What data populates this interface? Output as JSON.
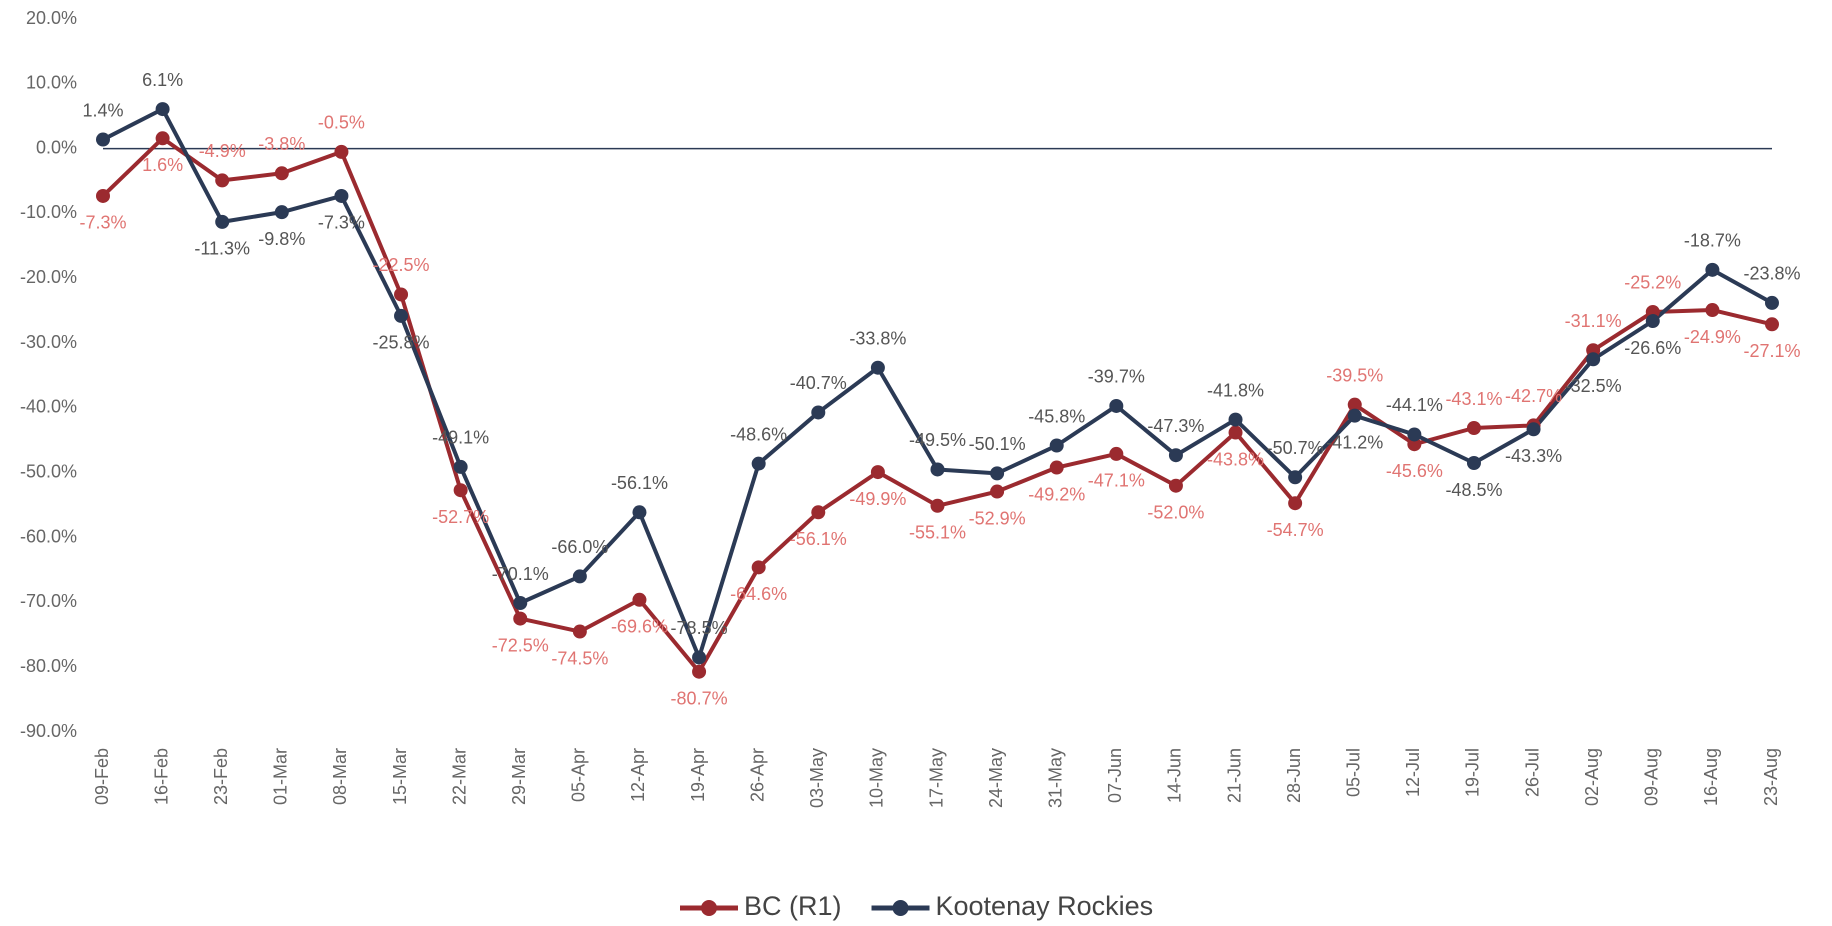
{
  "chart_data": {
    "type": "line",
    "categories": [
      "09-Feb",
      "16-Feb",
      "23-Feb",
      "01-Mar",
      "08-Mar",
      "15-Mar",
      "22-Mar",
      "29-Mar",
      "05-Apr",
      "12-Apr",
      "19-Apr",
      "26-Apr",
      "03-May",
      "10-May",
      "17-May",
      "24-May",
      "31-May",
      "07-Jun",
      "14-Jun",
      "21-Jun",
      "28-Jun",
      "05-Jul",
      "12-Jul",
      "19-Jul",
      "26-Jul",
      "02-Aug",
      "09-Aug",
      "16-Aug",
      "23-Aug"
    ],
    "series": [
      {
        "name": "BC (R1)",
        "color": "#9b2a2f",
        "label_color": "#e07472",
        "values": [
          -7.3,
          1.6,
          -4.9,
          -3.8,
          -0.5,
          -22.5,
          -52.7,
          -72.5,
          -74.5,
          -69.6,
          -80.7,
          -64.6,
          -56.1,
          -49.9,
          -55.1,
          -52.9,
          -49.2,
          -47.1,
          -52.0,
          -43.8,
          -54.7,
          -39.5,
          -45.6,
          -43.1,
          -42.7,
          -31.1,
          -25.2,
          -24.9,
          -27.1
        ],
        "value_labels": [
          "-7.3%",
          "1.6%",
          "-4.9%",
          "-3.8%",
          "-0.5%",
          "-22.5%",
          "-52.7%",
          "-72.5%",
          "-74.5%",
          "-69.6%",
          "-80.7%",
          "-64.6%",
          "-56.1%",
          "-49.9%",
          "-55.1%",
          "-52.9%",
          "-49.2%",
          "-47.1%",
          "-52.0%",
          "-43.8%",
          "-54.7%",
          "-39.5%",
          "-45.6%",
          "-43.1%",
          "-42.7%",
          "-31.1%",
          "-25.2%",
          "-24.9%",
          "-27.1%"
        ]
      },
      {
        "name": "Kootenay Rockies",
        "color": "#2b3a55",
        "label_color": "#555555",
        "values": [
          1.4,
          6.1,
          -11.3,
          -9.8,
          -7.3,
          -25.8,
          -49.1,
          -70.1,
          -66.0,
          -56.1,
          -78.5,
          -48.6,
          -40.7,
          -33.8,
          -49.5,
          -50.1,
          -45.8,
          -39.7,
          -47.3,
          -41.8,
          -50.7,
          -41.2,
          -44.1,
          -48.5,
          -43.3,
          -32.5,
          -26.6,
          -18.7,
          -23.8
        ],
        "value_labels": [
          "1.4%",
          "6.1%",
          "-11.3%",
          "-9.8%",
          "-7.3%",
          "-25.8%",
          "-49.1%",
          "-70.1%",
          "-66.0%",
          "-56.1%",
          "-78.5%",
          "-48.6%",
          "-40.7%",
          "-33.8%",
          "-49.5%",
          "-50.1%",
          "-45.8%",
          "-39.7%",
          "-47.3%",
          "-41.8%",
          "-50.7%",
          "-41.2%",
          "-44.1%",
          "-48.5%",
          "-43.3%",
          "-32.5%",
          "-26.6%",
          "-18.7%",
          "-23.8%"
        ]
      }
    ],
    "ylim": [
      -90,
      20
    ],
    "yticks": [
      {
        "value": 20,
        "label": "20.0%"
      },
      {
        "value": 10,
        "label": "10.0%"
      },
      {
        "value": 0,
        "label": "0.0%"
      },
      {
        "value": -10,
        "label": "-10.0%"
      },
      {
        "value": -20,
        "label": "-20.0%"
      },
      {
        "value": -30,
        "label": "-30.0%"
      },
      {
        "value": -40,
        "label": "-40.0%"
      },
      {
        "value": -50,
        "label": "-50.0%"
      },
      {
        "value": -60,
        "label": "-60.0%"
      },
      {
        "value": -70,
        "label": "-70.0%"
      },
      {
        "value": -80,
        "label": "-80.0%"
      },
      {
        "value": -90,
        "label": "-90.0%"
      }
    ],
    "grid": false,
    "legend": "bottom"
  }
}
